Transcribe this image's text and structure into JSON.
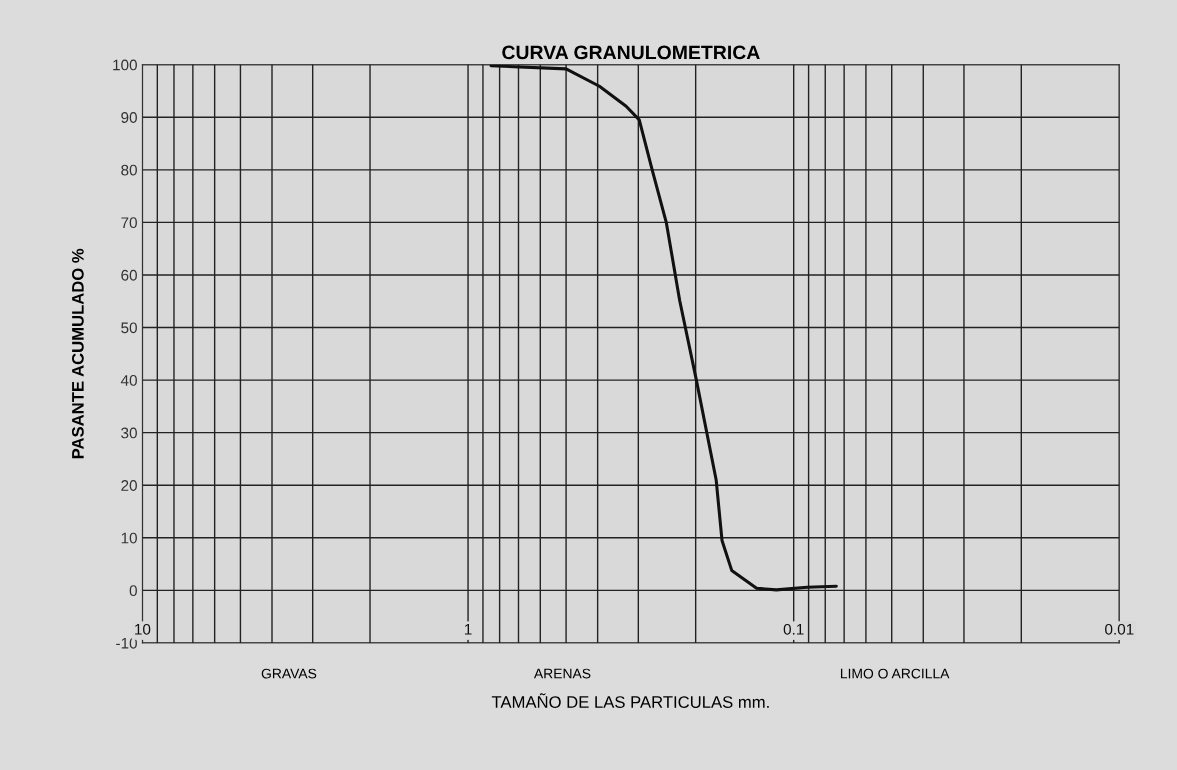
{
  "chart_data": {
    "type": "line",
    "title": "CURVA GRANULOMETRICA",
    "xlabel": "TAMAÑO DE LAS PARTICULAS mm.",
    "ylabel": "PASANTE ACUMULADO %",
    "log": "x",
    "grid": true,
    "marker": "none",
    "line_style": "solid",
    "legend": false,
    "xlim": [
      10,
      0.01
    ],
    "xticks": [
      10,
      {
        "value": 9,
        "label": null
      },
      {
        "value": 8,
        "label": null
      },
      {
        "value": 7,
        "label": null
      },
      {
        "value": 6,
        "label": null
      },
      {
        "value": 5,
        "label": null
      },
      {
        "value": 4,
        "label": null
      },
      {
        "value": 3,
        "label": null
      },
      {
        "value": 2,
        "label": null
      },
      1,
      {
        "value": 0.9,
        "label": null
      },
      {
        "value": 0.8,
        "label": null
      },
      {
        "value": 0.7,
        "label": null
      },
      {
        "value": 0.6,
        "label": null
      },
      {
        "value": 0.5,
        "label": null
      },
      {
        "value": 0.4,
        "label": null
      },
      {
        "value": 0.3,
        "label": null
      },
      {
        "value": 0.2,
        "label": null
      },
      0.1,
      {
        "value": 0.09,
        "label": null
      },
      {
        "value": 0.08,
        "label": null
      },
      {
        "value": 0.07,
        "label": null
      },
      {
        "value": 0.06,
        "label": null
      },
      {
        "value": 0.05,
        "label": null
      },
      {
        "value": 0.04,
        "label": null
      },
      {
        "value": 0.03,
        "label": null
      },
      {
        "value": 0.02,
        "label": null
      },
      0.01
    ],
    "ylim": [
      -10,
      100
    ],
    "yticks": [
      -10,
      0,
      10,
      20,
      30,
      40,
      50,
      60,
      70,
      80,
      90,
      100
    ],
    "annotations": [
      "GRAVAS",
      "ARENAS",
      "LIMO O ARCILLA"
    ],
    "series": [
      {
        "color": "#111111",
        "x": [
          0.85,
          0.5,
          0.395,
          0.327,
          0.298,
          0.272,
          0.246,
          0.224,
          0.199,
          0.173,
          0.166,
          0.155,
          0.13,
          0.113,
          0.091,
          0.074
        ],
        "values": [
          99.8,
          99.2,
          95.9,
          92.1,
          89.5,
          80,
          69.9,
          55.2,
          40,
          21,
          9.5,
          3.8,
          0.4,
          0.1,
          0.6,
          0.8
        ]
      }
    ]
  }
}
